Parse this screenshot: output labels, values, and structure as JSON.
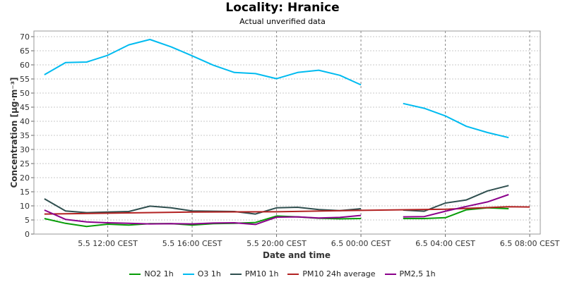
{
  "chart_data": {
    "type": "line",
    "title": "Locality: Hranice",
    "subtitle": "Actual unverified data",
    "xlabel": "Date and time",
    "ylabel": "Concentration [µg·m⁻³]",
    "ylim": [
      0,
      72
    ],
    "yticks": [
      0,
      5,
      10,
      15,
      20,
      25,
      30,
      35,
      40,
      45,
      50,
      55,
      60,
      65,
      70
    ],
    "xlim": [
      "2024-05-05 08:30",
      "2024-05-06 08:30"
    ],
    "xticks": [
      {
        "time": "2024-05-05 12:00",
        "label": "5.5 12:00 CEST"
      },
      {
        "time": "2024-05-05 16:00",
        "label": "5.5 16:00 CEST"
      },
      {
        "time": "2024-05-05 20:00",
        "label": "5.5 20:00 CEST"
      },
      {
        "time": "2024-05-06 00:00",
        "label": "6.5 00:00 CEST"
      },
      {
        "time": "2024-05-06 04:00",
        "label": "6.5 04:00 CEST"
      },
      {
        "time": "2024-05-06 08:00",
        "label": "6.5 08:00 CEST"
      }
    ],
    "grid": true,
    "legend_position": "bottom",
    "series": [
      {
        "name": "NO2 1h",
        "color": "#079c07",
        "points": [
          [
            "2024-05-05 09:00",
            5.5
          ],
          [
            "2024-05-05 10:00",
            3.8
          ],
          [
            "2024-05-05 11:00",
            2.7
          ],
          [
            "2024-05-05 12:00",
            3.5
          ],
          [
            "2024-05-05 13:00",
            3.2
          ],
          [
            "2024-05-05 14:00",
            3.7
          ],
          [
            "2024-05-05 15:00",
            3.7
          ],
          [
            "2024-05-05 16:00",
            3.2
          ],
          [
            "2024-05-05 17:00",
            3.7
          ],
          [
            "2024-05-05 18:00",
            3.8
          ],
          [
            "2024-05-05 19:00",
            4.1
          ],
          [
            "2024-05-05 20:00",
            6.4
          ],
          [
            "2024-05-05 21:00",
            6.1
          ],
          [
            "2024-05-05 22:00",
            5.6
          ],
          [
            "2024-05-05 23:00",
            5.4
          ],
          [
            "2024-05-06 00:00",
            5.5
          ],
          null,
          [
            "2024-05-06 02:00",
            5.5
          ],
          [
            "2024-05-06 03:00",
            5.5
          ],
          [
            "2024-05-06 04:00",
            5.8
          ],
          [
            "2024-05-06 05:00",
            8.6
          ],
          [
            "2024-05-06 06:00",
            9.3
          ],
          [
            "2024-05-06 07:00",
            9.0
          ]
        ]
      },
      {
        "name": "O3 1h",
        "color": "#00bbf0",
        "points": [
          [
            "2024-05-05 09:00",
            56.5
          ],
          [
            "2024-05-05 10:00",
            60.8
          ],
          [
            "2024-05-05 11:00",
            61.0
          ],
          [
            "2024-05-05 12:00",
            63.4
          ],
          [
            "2024-05-05 13:00",
            67.1
          ],
          [
            "2024-05-05 14:00",
            69.0
          ],
          [
            "2024-05-05 15:00",
            66.4
          ],
          [
            "2024-05-05 16:00",
            63.2
          ],
          [
            "2024-05-05 17:00",
            59.9
          ],
          [
            "2024-05-05 18:00",
            57.3
          ],
          [
            "2024-05-05 19:00",
            56.9
          ],
          [
            "2024-05-05 20:00",
            55.1
          ],
          [
            "2024-05-05 21:00",
            57.3
          ],
          [
            "2024-05-05 22:00",
            58.1
          ],
          [
            "2024-05-05 23:00",
            56.3
          ],
          [
            "2024-05-06 00:00",
            52.9
          ],
          null,
          [
            "2024-05-06 02:00",
            46.3
          ],
          [
            "2024-05-06 03:00",
            44.6
          ],
          [
            "2024-05-06 04:00",
            41.9
          ],
          [
            "2024-05-06 05:00",
            38.2
          ],
          [
            "2024-05-06 06:00",
            36.0
          ],
          [
            "2024-05-06 07:00",
            34.2
          ]
        ]
      },
      {
        "name": "PM10 1h",
        "color": "#2f4f4f",
        "points": [
          [
            "2024-05-05 09:00",
            12.5
          ],
          [
            "2024-05-05 10:00",
            8.2
          ],
          [
            "2024-05-05 11:00",
            7.6
          ],
          [
            "2024-05-05 12:00",
            7.8
          ],
          [
            "2024-05-05 13:00",
            8.0
          ],
          [
            "2024-05-05 14:00",
            9.9
          ],
          [
            "2024-05-05 15:00",
            9.3
          ],
          [
            "2024-05-05 16:00",
            8.2
          ],
          [
            "2024-05-05 17:00",
            8.1
          ],
          [
            "2024-05-05 18:00",
            8.0
          ],
          [
            "2024-05-05 19:00",
            7.1
          ],
          [
            "2024-05-05 20:00",
            9.3
          ],
          [
            "2024-05-05 21:00",
            9.5
          ],
          [
            "2024-05-05 22:00",
            8.7
          ],
          [
            "2024-05-05 23:00",
            8.3
          ],
          [
            "2024-05-06 00:00",
            9.0
          ],
          null,
          [
            "2024-05-06 02:00",
            8.5
          ],
          [
            "2024-05-06 03:00",
            8.1
          ],
          [
            "2024-05-06 04:00",
            11.0
          ],
          [
            "2024-05-06 05:00",
            12.1
          ],
          [
            "2024-05-06 06:00",
            15.3
          ],
          [
            "2024-05-06 07:00",
            17.2
          ]
        ]
      },
      {
        "name": "PM10 24h average",
        "color": "#b22222",
        "points": [
          [
            "2024-05-05 09:00",
            7.1
          ],
          [
            "2024-05-05 12:00",
            7.4
          ],
          [
            "2024-05-05 16:00",
            7.8
          ],
          [
            "2024-05-05 20:00",
            7.9
          ],
          [
            "2024-05-06 00:00",
            8.4
          ],
          [
            "2024-05-06 04:00",
            8.8
          ],
          [
            "2024-05-06 07:00",
            9.7
          ],
          [
            "2024-05-06 08:00",
            9.6
          ]
        ]
      },
      {
        "name": "PM2,5 1h",
        "color": "#8b008b",
        "points": [
          [
            "2024-05-05 09:00",
            8.5
          ],
          [
            "2024-05-05 10:00",
            5.2
          ],
          [
            "2024-05-05 11:00",
            4.3
          ],
          [
            "2024-05-05 12:00",
            4.0
          ],
          [
            "2024-05-05 13:00",
            3.8
          ],
          [
            "2024-05-05 14:00",
            3.6
          ],
          [
            "2024-05-05 15:00",
            3.7
          ],
          [
            "2024-05-05 16:00",
            3.6
          ],
          [
            "2024-05-05 17:00",
            3.9
          ],
          [
            "2024-05-05 18:00",
            4.0
          ],
          [
            "2024-05-05 19:00",
            3.4
          ],
          [
            "2024-05-05 20:00",
            6.0
          ],
          [
            "2024-05-05 21:00",
            6.1
          ],
          [
            "2024-05-05 22:00",
            5.7
          ],
          [
            "2024-05-05 23:00",
            5.9
          ],
          [
            "2024-05-06 00:00",
            6.6
          ],
          null,
          [
            "2024-05-06 02:00",
            6.1
          ],
          [
            "2024-05-06 03:00",
            6.2
          ],
          [
            "2024-05-06 04:00",
            8.1
          ],
          [
            "2024-05-06 05:00",
            9.8
          ],
          [
            "2024-05-06 06:00",
            11.4
          ],
          [
            "2024-05-06 07:00",
            14.0
          ]
        ]
      }
    ]
  }
}
